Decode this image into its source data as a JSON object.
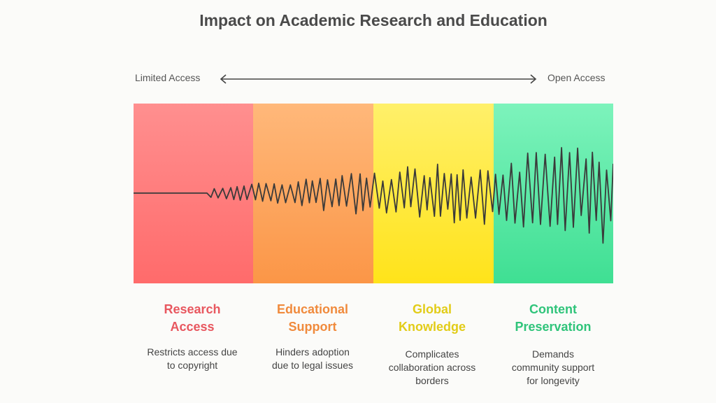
{
  "title": "Impact on Academic Research and Education",
  "scale": {
    "left": "Limited Access",
    "right": "Open Access"
  },
  "colors": {
    "red": "#ff6b6b",
    "orange": "#fb9647",
    "yellow": "#ffe31a",
    "green": "#3fdf93",
    "line": "#3a3a3a"
  },
  "columns": [
    {
      "title_1": "Research",
      "title_2": "Access",
      "desc_1": "Restricts access due",
      "desc_2": "to copyright",
      "desc_3": ""
    },
    {
      "title_1": "Educational",
      "title_2": "Support",
      "desc_1": "Hinders adoption",
      "desc_2": "due to legal issues",
      "desc_3": ""
    },
    {
      "title_1": "Global",
      "title_2": "Knowledge",
      "desc_1": "Complicates",
      "desc_2": "collaboration across",
      "desc_3": "borders"
    },
    {
      "title_1": "Content",
      "title_2": "Preservation",
      "desc_1": "Demands",
      "desc_2": "community support",
      "desc_3": "for longevity"
    }
  ]
}
